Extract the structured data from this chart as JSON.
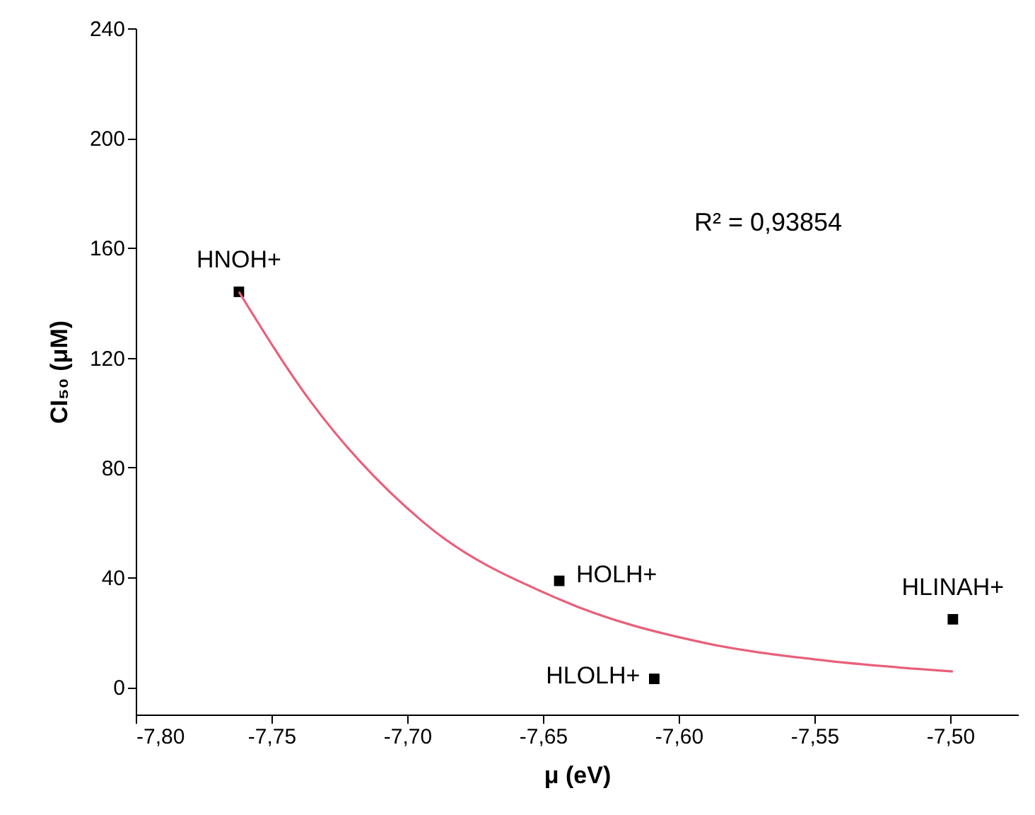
{
  "chart_data": {
    "type": "scatter",
    "xlabel": "μ  (eV)",
    "ylabel": "CI₅₀ (μM)",
    "xlim": [
      -7.8,
      -7.475
    ],
    "ylim": [
      -10,
      240
    ],
    "xticks": [
      {
        "value": -7.8,
        "label": "-7,80"
      },
      {
        "value": -7.75,
        "label": "-7,75"
      },
      {
        "value": -7.7,
        "label": "-7,70"
      },
      {
        "value": -7.65,
        "label": "-7,65"
      },
      {
        "value": -7.6,
        "label": "-7,60"
      },
      {
        "value": -7.55,
        "label": "-7,55"
      },
      {
        "value": -7.5,
        "label": "-7,50"
      }
    ],
    "yticks": [
      0,
      40,
      80,
      120,
      160,
      200,
      240
    ],
    "grid": false,
    "annotations": [
      "R² = 0,93854"
    ],
    "series": [
      {
        "marker": "square",
        "color": "#000000",
        "x": [
          -7.762,
          -7.644,
          -7.609,
          -7.499
        ],
        "values": [
          144,
          38.7,
          3,
          24.7
        ],
        "value_labels": [
          "HNOH+",
          "HOLH+",
          "HLOLH+",
          "HLINAH+"
        ]
      },
      {
        "type": "line",
        "marker": "none",
        "color": "#e8607a",
        "x": [
          -7.762,
          -7.736,
          -7.694,
          -7.644,
          -7.59,
          -7.549,
          -7.499
        ],
        "values": [
          144,
          104.6,
          60,
          32,
          16,
          10,
          5.7
        ]
      }
    ]
  }
}
